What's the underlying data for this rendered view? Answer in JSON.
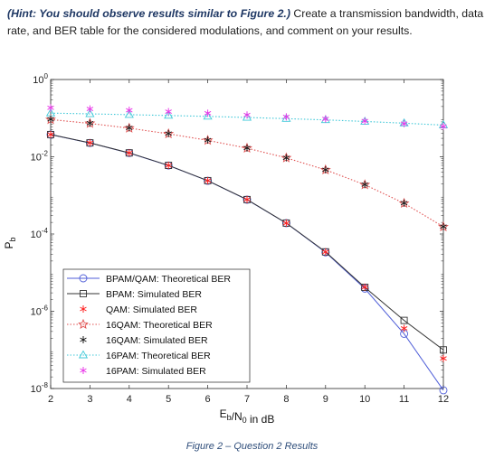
{
  "instruction": {
    "hint_prefix": "(Hint: You should observe results similar to Figure 2.)",
    "body": " Create a transmission bandwidth, data rate, and BER table for the considered modulations, and comment on your results."
  },
  "caption": "Figure 2 – Question 2 Results",
  "chart_data": {
    "type": "line",
    "xlabel": "E_b/N_0 in dB",
    "ylabel": "P_b",
    "yscale": "log",
    "xlim": [
      2,
      12
    ],
    "ylim": [
      1e-08,
      1
    ],
    "x_ticks": [
      2,
      3,
      4,
      5,
      6,
      7,
      8,
      9,
      10,
      11,
      12
    ],
    "y_ticks": [
      {
        "exp": "0",
        "value": 1
      },
      {
        "exp": "-2",
        "value": 0.01
      },
      {
        "exp": "-4",
        "value": 0.0001
      },
      {
        "exp": "-6",
        "value": 1e-06
      },
      {
        "exp": "-8",
        "value": 1e-08
      }
    ],
    "legend_position": "lower-left",
    "grid": false,
    "x": [
      2,
      3,
      4,
      5,
      6,
      7,
      8,
      9,
      10,
      11,
      12
    ],
    "series": [
      {
        "name": "BPAM/QAM: Theoretical BER",
        "color": "#4f5ed8",
        "line": "solid",
        "marker": "circle",
        "values": [
          0.0375,
          0.0228,
          0.0125,
          0.00595,
          0.00239,
          0.000774,
          0.000191,
          3.36e-05,
          3.87e-06,
          2.61e-07,
          9.01e-09
        ]
      },
      {
        "name": "BPAM: Simulated BER",
        "color": "#333333",
        "line": "solid",
        "marker": "square",
        "values": [
          0.0376,
          0.0229,
          0.0126,
          0.00598,
          0.00241,
          0.00078,
          0.000192,
          3.45e-05,
          4.17e-06,
          5.8e-07,
          1e-07
        ]
      },
      {
        "name": "QAM: Simulated BER",
        "color": "#ff2020",
        "line": "none",
        "marker": "asterisk",
        "values": [
          0.0376,
          0.0229,
          0.0126,
          0.00598,
          0.00241,
          0.00078,
          0.000192,
          3.45e-05,
          4.2e-06,
          3.6e-07,
          6e-08
        ]
      },
      {
        "name": "16QAM: Theoretical BER",
        "color": "#e05050",
        "line": "dotted",
        "marker": "star",
        "values": [
          0.092,
          0.073,
          0.055,
          0.0393,
          0.0266,
          0.0167,
          0.00936,
          0.00458,
          0.00189,
          0.000624,
          0.000154
        ]
      },
      {
        "name": "16QAM: Simulated BER",
        "color": "#1a1a1a",
        "line": "none",
        "marker": "asterisk",
        "values": [
          0.093,
          0.074,
          0.056,
          0.04,
          0.027,
          0.0168,
          0.0094,
          0.0046,
          0.0019,
          0.00063,
          0.000155
        ]
      },
      {
        "name": "16PAM: Theoretical BER",
        "color": "#3fc8d8",
        "line": "dotted",
        "marker": "triangle",
        "values": [
          0.135,
          0.129,
          0.123,
          0.117,
          0.111,
          0.104,
          0.097,
          0.09,
          0.082,
          0.074,
          0.066
        ]
      },
      {
        "name": "16PAM: Simulated BER",
        "color": "#e838e8",
        "line": "none",
        "marker": "asterisk",
        "values": [
          0.185,
          0.173,
          0.16,
          0.147,
          0.134,
          0.121,
          0.108,
          0.096,
          0.084,
          0.072,
          0.061
        ]
      }
    ]
  }
}
